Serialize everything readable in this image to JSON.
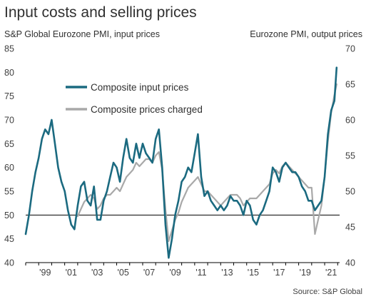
{
  "chart_data": {
    "type": "line",
    "title": "Input costs and selling prices",
    "left_axis_title": "S&P Global Eurozone PMI, input prices",
    "right_axis_title": "Eurozone PMI, output prices",
    "source": "Source: S&P Global",
    "ylim_left": [
      40,
      85
    ],
    "ylim_right": [
      40,
      70
    ],
    "yticks_left": [
      "40",
      "45",
      "50",
      "55",
      "60",
      "65",
      "70",
      "75",
      "80",
      "85"
    ],
    "yticks_right": [
      "40",
      "45",
      "50",
      "55",
      "60",
      "65",
      "70"
    ],
    "xticks": [
      "'99",
      "'01",
      "'03",
      "'05",
      "'07",
      "'09",
      "'11",
      "'13",
      "'15",
      "'17",
      "'19",
      "'21"
    ],
    "reference_line_left": 50,
    "grid": false,
    "legend_placement": "top-left",
    "colors": {
      "input": "#1b6a80",
      "output": "#a9a9a9",
      "axis": "#000000"
    },
    "series": [
      {
        "name": "Composite input prices",
        "axis": "left",
        "x": [
          1998.0,
          1998.25,
          1998.5,
          1998.75,
          1999.0,
          1999.25,
          1999.5,
          1999.75,
          2000.0,
          2000.25,
          2000.5,
          2000.75,
          2001.0,
          2001.25,
          2001.5,
          2001.75,
          2002.0,
          2002.25,
          2002.5,
          2002.75,
          2003.0,
          2003.25,
          2003.5,
          2003.75,
          2004.0,
          2004.25,
          2004.5,
          2004.75,
          2005.0,
          2005.25,
          2005.5,
          2005.75,
          2006.0,
          2006.25,
          2006.5,
          2006.75,
          2007.0,
          2007.25,
          2007.5,
          2007.75,
          2008.0,
          2008.25,
          2008.5,
          2008.75,
          2009.0,
          2009.25,
          2009.5,
          2009.75,
          2010.0,
          2010.25,
          2010.5,
          2010.75,
          2011.0,
          2011.25,
          2011.5,
          2011.75,
          2012.0,
          2012.25,
          2012.5,
          2012.75,
          2013.0,
          2013.25,
          2013.5,
          2013.75,
          2014.0,
          2014.25,
          2014.5,
          2014.75,
          2015.0,
          2015.25,
          2015.5,
          2015.75,
          2016.0,
          2016.25,
          2016.5,
          2016.75,
          2017.0,
          2017.25,
          2017.5,
          2017.75,
          2018.0,
          2018.25,
          2018.5,
          2018.75,
          2019.0,
          2019.25,
          2019.5,
          2019.75,
          2020.0,
          2020.25,
          2020.5,
          2020.75,
          2021.0,
          2021.25,
          2021.5,
          2021.75,
          2021.92
        ],
        "values": [
          46.0,
          50.0,
          55.0,
          59.0,
          62.0,
          66.0,
          68.0,
          67.0,
          70.0,
          65.0,
          60.0,
          57.0,
          55.0,
          51.0,
          48.0,
          47.0,
          52.0,
          56.0,
          57.0,
          53.0,
          52.0,
          56.0,
          49.0,
          49.0,
          53.0,
          55.0,
          58.0,
          61.0,
          60.0,
          57.0,
          62.0,
          66.0,
          62.0,
          61.0,
          65.0,
          62.0,
          65.0,
          63.0,
          62.0,
          61.0,
          66.0,
          68.0,
          60.0,
          48.0,
          41.0,
          45.0,
          50.0,
          53.0,
          57.0,
          58.0,
          60.0,
          59.0,
          63.0,
          67.0,
          58.0,
          54.0,
          55.0,
          53.0,
          52.0,
          51.0,
          52.0,
          51.0,
          52.0,
          54.0,
          53.0,
          53.0,
          52.0,
          50.0,
          53.0,
          52.0,
          49.0,
          48.0,
          50.0,
          51.0,
          53.0,
          55.0,
          60.0,
          59.0,
          57.0,
          60.0,
          61.0,
          60.0,
          59.0,
          59.0,
          58.0,
          56.0,
          55.0,
          53.0,
          53.0,
          51.0,
          52.0,
          53.0,
          58.0,
          67.0,
          72.0,
          74.0,
          81.0
        ]
      },
      {
        "name": "Composite prices charged",
        "axis": "right",
        "x": [
          2002.0,
          2002.25,
          2002.5,
          2002.75,
          2003.0,
          2003.25,
          2003.5,
          2003.75,
          2004.0,
          2004.25,
          2004.5,
          2004.75,
          2005.0,
          2005.25,
          2005.5,
          2005.75,
          2006.0,
          2006.25,
          2006.5,
          2006.75,
          2007.0,
          2007.25,
          2007.5,
          2007.75,
          2008.0,
          2008.25,
          2008.5,
          2008.75,
          2009.0,
          2009.25,
          2009.5,
          2009.75,
          2010.0,
          2010.25,
          2010.5,
          2010.75,
          2011.0,
          2011.25,
          2011.5,
          2011.75,
          2012.0,
          2012.25,
          2012.5,
          2012.75,
          2013.0,
          2013.25,
          2013.5,
          2013.75,
          2014.0,
          2014.25,
          2014.5,
          2014.75,
          2015.0,
          2015.25,
          2015.5,
          2015.75,
          2016.0,
          2016.25,
          2016.5,
          2016.75,
          2017.0,
          2017.25,
          2017.5,
          2017.75,
          2018.0,
          2018.25,
          2018.5,
          2018.75,
          2019.0,
          2019.25,
          2019.5,
          2019.75,
          2020.0,
          2020.25,
          2020.5,
          2020.75,
          2021.0,
          2021.25,
          2021.5,
          2021.75,
          2021.92
        ],
        "values": [
          46.5,
          47.5,
          48.5,
          49.0,
          49.5,
          49.0,
          47.5,
          48.0,
          49.0,
          49.5,
          49.5,
          50.0,
          50.5,
          50.0,
          51.0,
          52.0,
          52.5,
          53.0,
          54.0,
          53.5,
          54.0,
          54.5,
          54.5,
          54.0,
          55.0,
          55.5,
          53.0,
          47.5,
          43.0,
          44.5,
          46.0,
          47.0,
          48.5,
          49.5,
          50.5,
          51.0,
          51.5,
          52.0,
          51.0,
          50.0,
          50.0,
          49.5,
          49.0,
          48.5,
          48.0,
          48.5,
          49.0,
          49.5,
          49.5,
          49.5,
          49.0,
          48.0,
          48.5,
          49.0,
          49.0,
          49.0,
          49.5,
          50.0,
          50.5,
          51.0,
          52.5,
          53.0,
          52.5,
          53.5,
          54.0,
          53.5,
          53.0,
          52.5,
          52.0,
          51.5,
          51.0,
          50.5,
          50.5,
          44.0,
          46.0,
          48.0,
          52.0,
          57.0,
          61.0,
          63.5,
          65.0
        ]
      }
    ]
  }
}
